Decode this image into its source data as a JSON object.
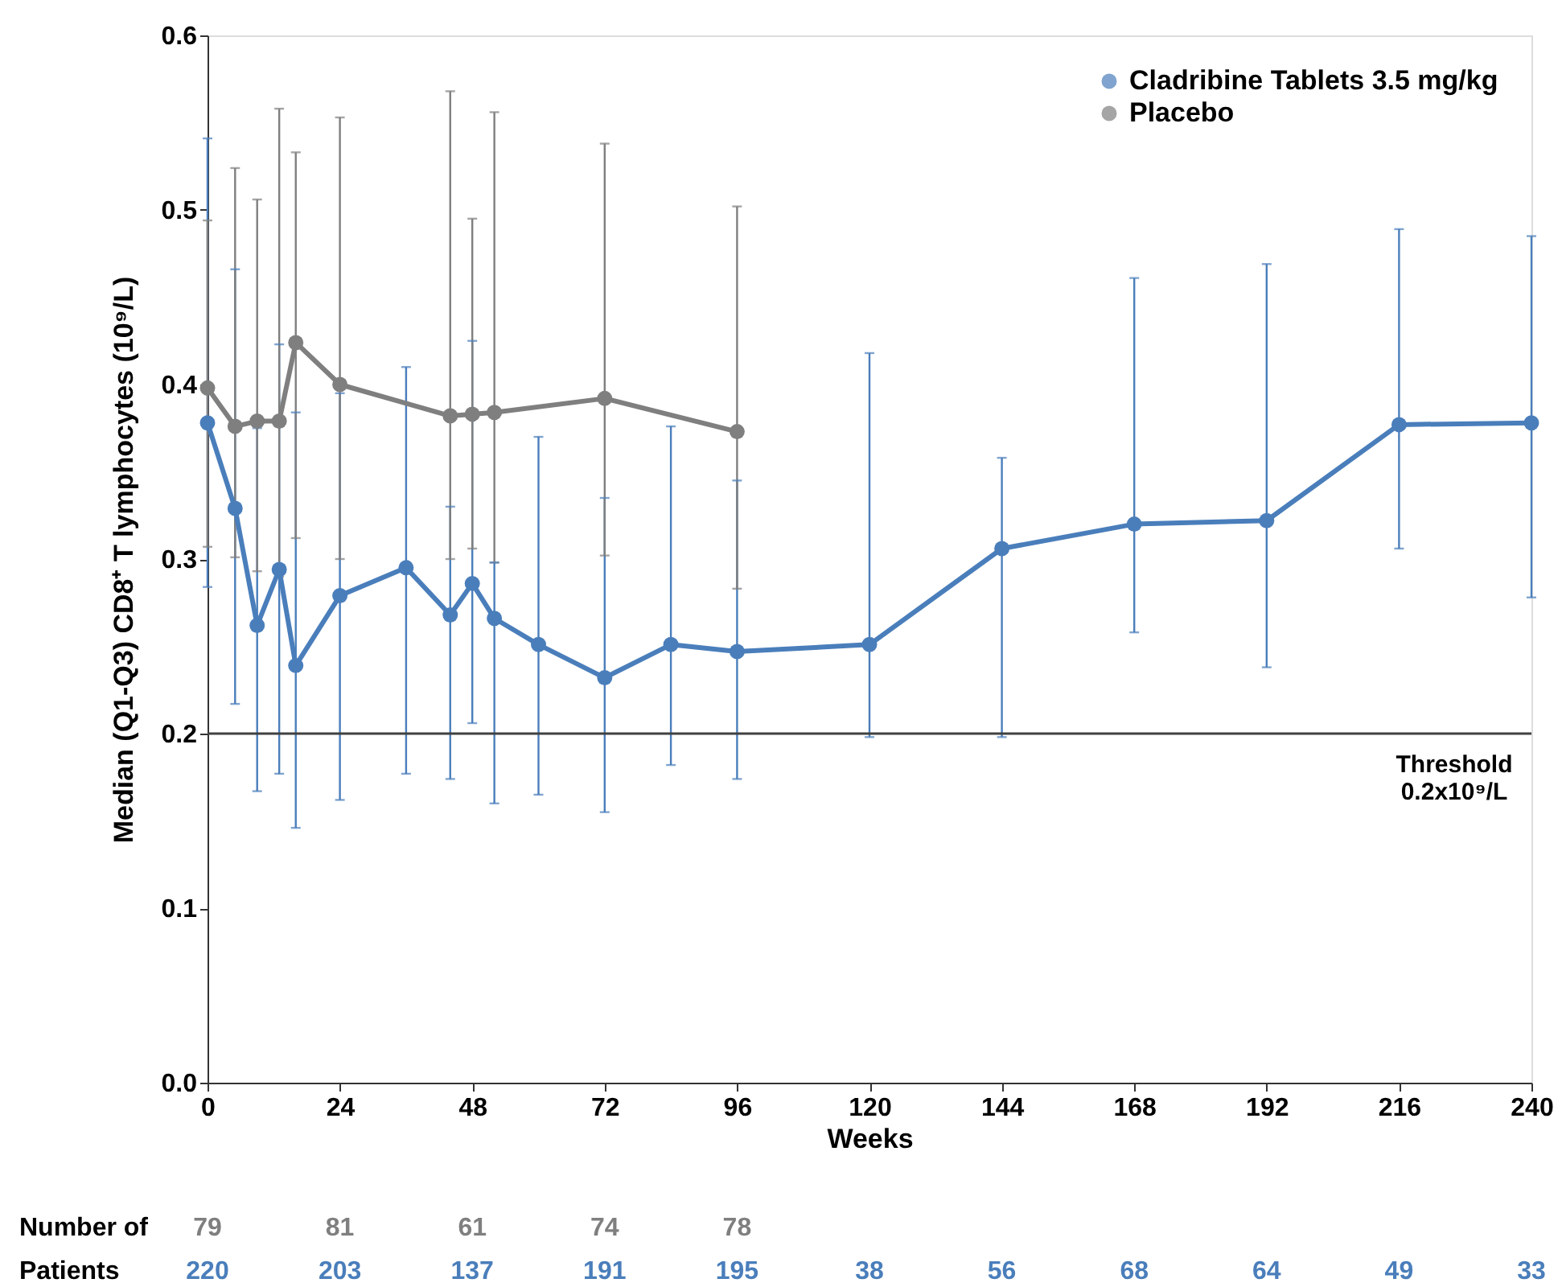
{
  "chart_data": {
    "type": "line",
    "xlabel": "Weeks",
    "ylabel": "Median (Q1-Q3) CD8⁺ T lymphocytes (10⁹/L)",
    "xlim": [
      0,
      240
    ],
    "xticks": [
      0,
      24,
      48,
      72,
      96,
      120,
      144,
      168,
      192,
      216,
      240
    ],
    "ylim": [
      0,
      0.6
    ],
    "yticks": [
      {
        "value": 0,
        "label": "0.0"
      },
      {
        "value": 0.1,
        "label": "0.1"
      },
      {
        "value": 0.2,
        "label": "0.2"
      },
      {
        "value": 0.3,
        "label": "0.3"
      },
      {
        "value": 0.4,
        "label": "0.4"
      },
      {
        "value": 0.5,
        "label": "0.5"
      },
      {
        "value": 0.6,
        "label": "0.6"
      }
    ],
    "series": [
      {
        "name": "Cladribine Tablets 3.5 mg/kg",
        "color": "#4a7ebb",
        "x": [
          0,
          5,
          9,
          13,
          16,
          24,
          36,
          44,
          48,
          52,
          60,
          72,
          84,
          96,
          120,
          144,
          168,
          192,
          216,
          240
        ],
        "values": [
          0.378,
          0.329,
          0.262,
          0.294,
          0.239,
          0.279,
          0.295,
          0.268,
          0.286,
          0.266,
          0.251,
          0.232,
          0.251,
          0.247,
          0.251,
          0.306,
          0.32,
          0.322,
          0.377,
          0.378
        ],
        "errors": [
          [
            0.284,
            0.541
          ],
          [
            0.217,
            0.466
          ],
          [
            0.167,
            0.375
          ],
          [
            0.177,
            0.423
          ],
          [
            0.146,
            0.384
          ],
          [
            0.162,
            0.395
          ],
          [
            0.177,
            0.41
          ],
          [
            0.174,
            0.33
          ],
          [
            0.206,
            0.425
          ],
          [
            0.16,
            0.298
          ],
          [
            0.165,
            0.37
          ],
          [
            0.155,
            0.335
          ],
          [
            0.182,
            0.376
          ],
          [
            0.174,
            0.345
          ],
          [
            0.198,
            0.418
          ],
          [
            0.198,
            0.358
          ],
          [
            0.258,
            0.461
          ],
          [
            0.238,
            0.469
          ],
          [
            0.306,
            0.489
          ],
          [
            0.278,
            0.485
          ]
        ]
      },
      {
        "name": "Placebo",
        "color": "#7f7f7f",
        "x": [
          0,
          5,
          9,
          13,
          16,
          24,
          44,
          48,
          52,
          72,
          96
        ],
        "values": [
          0.398,
          0.376,
          0.379,
          0.379,
          0.424,
          0.4,
          0.382,
          0.383,
          0.384,
          0.392,
          0.373
        ],
        "errors": [
          [
            0.307,
            0.494
          ],
          [
            0.301,
            0.524
          ],
          [
            0.293,
            0.506
          ],
          [
            0.29,
            0.558
          ],
          [
            0.312,
            0.533
          ],
          [
            0.3,
            0.553
          ],
          [
            0.3,
            0.568
          ],
          [
            0.306,
            0.495
          ],
          [
            0.298,
            0.556
          ],
          [
            0.302,
            0.538
          ],
          [
            0.283,
            0.502
          ]
        ]
      }
    ],
    "marker": "circle",
    "grid": false,
    "legend": "top right",
    "ref_lines": [
      {
        "axis": "y",
        "value": 0.2,
        "label": "Threshold\n0.2x10⁹/L",
        "color": "#404040"
      }
    ],
    "line_style": "solid",
    "annotations": [
      "Number of",
      "79",
      "81",
      "61",
      "74",
      "78",
      "Patients",
      "220",
      "203",
      "137",
      "191",
      "195",
      "38",
      "56",
      "68",
      "64",
      "49",
      "33"
    ]
  }
}
